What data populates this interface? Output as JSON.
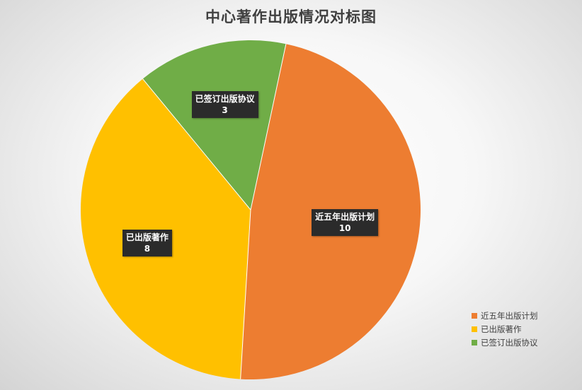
{
  "chart_data": {
    "type": "pie",
    "title": "中心著作出版情况对标图",
    "slices": [
      {
        "label": "近五年出版计划",
        "value": 10,
        "color": "#ED7D31"
      },
      {
        "label": "已出版著作",
        "value": 8,
        "color": "#FFC000"
      },
      {
        "label": "已签订出版协议",
        "value": 3,
        "color": "#70AD47"
      }
    ],
    "legend_placement": "bottom-right",
    "data_labels": true
  }
}
